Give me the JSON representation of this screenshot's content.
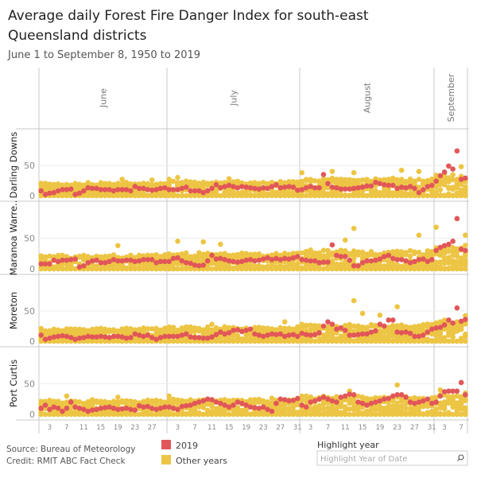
{
  "header": {
    "title_line1": "Average daily Forest Fire Danger Index for south-east",
    "title_line2": "Queensland districts",
    "subtitle": "June 1 to September 8, 1950 to 2019"
  },
  "footer": {
    "source": "Source: Bureau of Meteorology",
    "credit": "Credit: RMIT ABC Fact Check"
  },
  "legend": {
    "items": [
      {
        "label": "2019",
        "color": "#E15759"
      },
      {
        "label": "Other years",
        "color": "#EDC544"
      }
    ]
  },
  "filter": {
    "label": "Highlight year",
    "placeholder": "Highlight Year of Date",
    "icon": "search-icon"
  },
  "chart_data": {
    "type": "scatter",
    "title": "Average daily Forest Fire Danger Index for south-east Queensland districts",
    "subtitle": "June 1 to September 8, 1950 to 2019",
    "months": [
      {
        "label": "June",
        "days": 30,
        "ticks": [
          "3",
          "7",
          "11",
          "15",
          "19",
          "23",
          "27"
        ]
      },
      {
        "label": "July",
        "days": 31,
        "ticks": [
          "3",
          "7",
          "11",
          "15",
          "19",
          "23",
          "27",
          "31"
        ]
      },
      {
        "label": "August",
        "days": 31,
        "ticks": [
          "3",
          "7",
          "11",
          "15",
          "19",
          "23",
          "27",
          "31"
        ]
      },
      {
        "label": "September",
        "days": 8,
        "ticks": [
          "3",
          "7"
        ]
      }
    ],
    "x_range": [
      "Jun 1",
      "Sep 8"
    ],
    "ylim": [
      0,
      100
    ],
    "yticks": [
      "0",
      "50"
    ],
    "grid": true,
    "colors": {
      "highlight": "#E15759",
      "other": "#EDC544"
    },
    "panels": [
      {
        "district": "Darling Downs",
        "series_2019": [
          8,
          2,
          4,
          5,
          8,
          10,
          10,
          11,
          2,
          4,
          8,
          13,
          12,
          12,
          10,
          10,
          10,
          8,
          10,
          10,
          10,
          8,
          15,
          12,
          12,
          10,
          9,
          10,
          12,
          13,
          10,
          10,
          10,
          12,
          14,
          8,
          8,
          8,
          5,
          8,
          12,
          18,
          13,
          15,
          17,
          15,
          13,
          15,
          14,
          13,
          12,
          11,
          13,
          12,
          15,
          18,
          13,
          14,
          15,
          14,
          9,
          10,
          13,
          15,
          13,
          13,
          35,
          20,
          14,
          13,
          11,
          11,
          11,
          12,
          13,
          14,
          16,
          16,
          22,
          20,
          18,
          17,
          17,
          12,
          14,
          13,
          15,
          12,
          5,
          10,
          15,
          17,
          24,
          33,
          39,
          49,
          44,
          74,
          27,
          29
        ],
        "other_years_typical_max": {
          "June": 20,
          "July": 22,
          "August": 27,
          "September": 33
        },
        "other_years_outliers": [
          {
            "date": "Jun 20",
            "value": 27
          },
          {
            "date": "Jun 27",
            "value": 26
          },
          {
            "date": "Jul 1",
            "value": 27
          },
          {
            "date": "Jul 3",
            "value": 30
          },
          {
            "date": "Jul 15",
            "value": 28
          },
          {
            "date": "Aug 1",
            "value": 38
          },
          {
            "date": "Aug 8",
            "value": 40
          },
          {
            "date": "Aug 13",
            "value": 38
          },
          {
            "date": "Aug 24",
            "value": 42
          },
          {
            "date": "Aug 28",
            "value": 40
          },
          {
            "date": "Sep 7",
            "value": 48
          }
        ]
      },
      {
        "district": "Maranoa Warre..",
        "series_2019": [
          8,
          8,
          8,
          14,
          12,
          14,
          14,
          15,
          16,
          3,
          5,
          10,
          13,
          14,
          10,
          10,
          12,
          15,
          13,
          13,
          14,
          14,
          12,
          13,
          15,
          15,
          15,
          10,
          12,
          12,
          12,
          17,
          18,
          13,
          10,
          9,
          6,
          5,
          6,
          13,
          22,
          16,
          17,
          15,
          13,
          12,
          11,
          12,
          14,
          15,
          13,
          14,
          16,
          18,
          15,
          17,
          15,
          17,
          16,
          18,
          20,
          15,
          14,
          13,
          13,
          10,
          11,
          11,
          39,
          22,
          20,
          20,
          14,
          5,
          5,
          10,
          13,
          13,
          14,
          16,
          20,
          22,
          17,
          15,
          15,
          13,
          10,
          12,
          15,
          16,
          12,
          15,
          30,
          35,
          38,
          40,
          45,
          82,
          32,
          30
        ],
        "other_years_typical_max": {
          "June": 21,
          "July": 24,
          "August": 28,
          "September": 35
        },
        "other_years_outliers": [
          {
            "date": "Jun 19",
            "value": 38
          },
          {
            "date": "Jul 3",
            "value": 45
          },
          {
            "date": "Jul 9",
            "value": 44
          },
          {
            "date": "Jul 13",
            "value": 40
          },
          {
            "date": "Aug 13",
            "value": 66
          },
          {
            "date": "Aug 11",
            "value": 47
          },
          {
            "date": "Aug 28",
            "value": 55
          },
          {
            "date": "Sep 1",
            "value": 68
          },
          {
            "date": "Sep 8",
            "value": 55
          }
        ]
      },
      {
        "district": "Moreton",
        "series_2019": [
          10,
          3,
          5,
          7,
          8,
          9,
          8,
          6,
          3,
          5,
          6,
          8,
          7,
          7,
          8,
          7,
          6,
          8,
          8,
          7,
          5,
          6,
          12,
          10,
          8,
          10,
          6,
          3,
          6,
          8,
          8,
          8,
          8,
          10,
          12,
          7,
          6,
          6,
          5,
          5,
          7,
          11,
          15,
          12,
          14,
          18,
          19,
          16,
          18,
          20,
          12,
          10,
          8,
          10,
          12,
          11,
          12,
          8,
          10,
          11,
          8,
          13,
          11,
          10,
          11,
          14,
          25,
          32,
          28,
          20,
          22,
          18,
          10,
          10,
          11,
          12,
          12,
          15,
          17,
          28,
          25,
          35,
          35,
          15,
          14,
          15,
          13,
          8,
          8,
          10,
          15,
          20,
          22,
          23,
          27,
          35,
          30,
          55,
          33,
          36
        ],
        "other_years_typical_max": {
          "June": 20,
          "July": 22,
          "August": 26,
          "September": 32
        },
        "other_years_outliers": [
          {
            "date": "Jul 11",
            "value": 28
          },
          {
            "date": "Jul 28",
            "value": 32
          },
          {
            "date": "Aug 13",
            "value": 67
          },
          {
            "date": "Aug 15",
            "value": 46
          },
          {
            "date": "Aug 19",
            "value": 43
          },
          {
            "date": "Aug 23",
            "value": 57
          },
          {
            "date": "Sep 8",
            "value": 42
          }
        ]
      },
      {
        "district": "Port Curtis",
        "series_2019": [
          10,
          15,
          8,
          12,
          10,
          5,
          10,
          20,
          12,
          10,
          8,
          5,
          7,
          8,
          10,
          11,
          12,
          10,
          8,
          9,
          10,
          8,
          7,
          14,
          12,
          13,
          10,
          8,
          10,
          12,
          12,
          10,
          8,
          13,
          14,
          15,
          18,
          20,
          22,
          25,
          24,
          20,
          18,
          15,
          12,
          15,
          20,
          18,
          15,
          12,
          11,
          10,
          12,
          8,
          5,
          18,
          25,
          24,
          22,
          23,
          26,
          15,
          12,
          20,
          22,
          25,
          28,
          25,
          22,
          20,
          28,
          30,
          33,
          32,
          20,
          18,
          15,
          18,
          20,
          22,
          25,
          26,
          30,
          32,
          32,
          28,
          20,
          18,
          20,
          22,
          25,
          18,
          20,
          30,
          37,
          38,
          38,
          38,
          52,
          32
        ],
        "other_years_typical_max": {
          "June": 22,
          "July": 24,
          "August": 28,
          "September": 33
        },
        "other_years_outliers": [
          {
            "date": "Jun 7",
            "value": 30
          },
          {
            "date": "Jun 19",
            "value": 28
          },
          {
            "date": "Jul 1",
            "value": 30
          },
          {
            "date": "Aug 12",
            "value": 38
          },
          {
            "date": "Aug 23",
            "value": 48
          },
          {
            "date": "Sep 2",
            "value": 40
          }
        ]
      }
    ]
  }
}
